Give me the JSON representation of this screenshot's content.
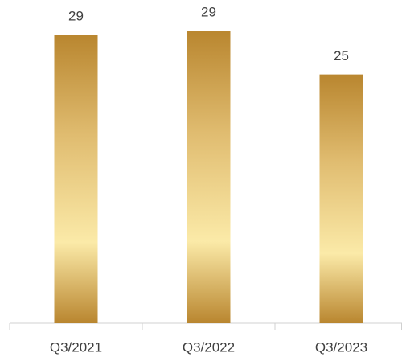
{
  "chart_data": {
    "type": "bar",
    "categories": [
      "Q3/2021",
      "Q3/2022",
      "Q3/2023"
    ],
    "values": [
      29.0,
      29.4,
      25.0
    ],
    "value_labels": [
      "29",
      "29",
      "25"
    ],
    "ylim": [
      0,
      32
    ]
  }
}
